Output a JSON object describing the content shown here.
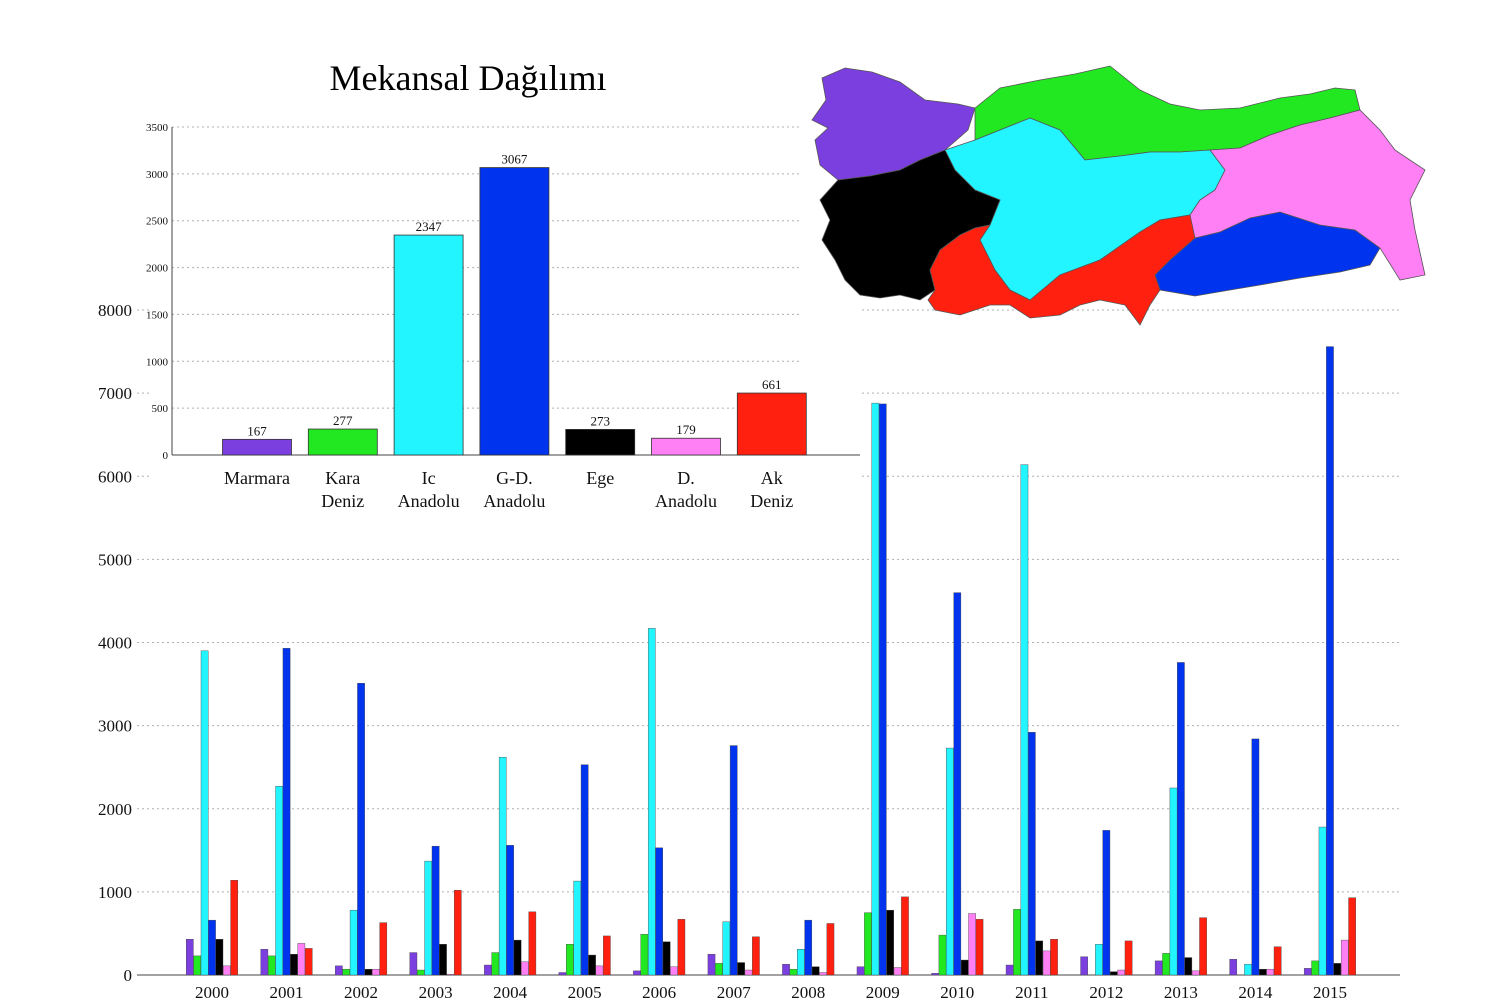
{
  "chart_data": [
    {
      "type": "bar",
      "title": "Mekansal Dağılımı",
      "categories": [
        [
          "Marmara"
        ],
        [
          "Kara",
          "Deniz"
        ],
        [
          "Ic",
          "Anadolu"
        ],
        [
          "G-D.",
          "Anadolu"
        ],
        [
          "Ege"
        ],
        [
          "D.",
          "Anadolu"
        ],
        [
          "Ak",
          "Deniz"
        ]
      ],
      "values": [
        167,
        277,
        2347,
        3067,
        273,
        179,
        661
      ],
      "data_labels": [
        "167",
        "277",
        "2347",
        "3067",
        "273",
        "179",
        "661"
      ],
      "colors": [
        "#7b3fe0",
        "#22e822",
        "#22f5ff",
        "#0033ee",
        "#000000",
        "#ff7ff5",
        "#ff2010"
      ],
      "ylim": [
        0,
        3500
      ],
      "yticks": [
        0,
        500,
        1000,
        1500,
        2000,
        2500,
        3000,
        3500
      ],
      "grid": true
    },
    {
      "type": "bar",
      "categories": [
        "2000",
        "2001",
        "2002",
        "2003",
        "2004",
        "2005",
        "2006",
        "2007",
        "2008",
        "2009",
        "2010",
        "2011",
        "2012",
        "2013",
        "2014",
        "2015"
      ],
      "series": [
        {
          "color": "#7b3fe0",
          "values": [
            430,
            310,
            110,
            270,
            120,
            30,
            50,
            250,
            130,
            100,
            20,
            120,
            220,
            170,
            190,
            80
          ]
        },
        {
          "color": "#22e822",
          "values": [
            230,
            230,
            70,
            60,
            270,
            370,
            490,
            140,
            70,
            750,
            480,
            790,
            0,
            260,
            0,
            170
          ]
        },
        {
          "color": "#22f5ff",
          "values": [
            3900,
            2270,
            780,
            1370,
            2620,
            1130,
            4170,
            640,
            310,
            6880,
            2730,
            6140,
            370,
            2250,
            130,
            1780
          ]
        },
        {
          "color": "#0033ee",
          "values": [
            660,
            3930,
            3510,
            1550,
            1560,
            2530,
            1530,
            2760,
            660,
            6870,
            4600,
            2920,
            1740,
            3760,
            2840,
            7560
          ]
        },
        {
          "color": "#000000",
          "values": [
            430,
            250,
            70,
            370,
            420,
            240,
            400,
            150,
            100,
            780,
            180,
            410,
            40,
            210,
            70,
            140
          ]
        },
        {
          "color": "#ff7ff5",
          "values": [
            110,
            380,
            70,
            10,
            160,
            110,
            100,
            60,
            30,
            90,
            740,
            290,
            60,
            50,
            70,
            420
          ]
        },
        {
          "color": "#ff2010",
          "values": [
            1140,
            320,
            630,
            1020,
            760,
            470,
            670,
            460,
            620,
            940,
            670,
            430,
            410,
            690,
            340,
            930
          ]
        }
      ],
      "ylim": [
        0,
        8000
      ],
      "yticks": [
        0,
        1000,
        2000,
        3000,
        4000,
        5000,
        6000,
        7000,
        8000
      ],
      "grid": true
    }
  ],
  "map": {
    "region_colors": [
      "#7b3fe0",
      "#22e822",
      "#22f5ff",
      "#0033ee",
      "#000000",
      "#ff7ff5",
      "#ff2010"
    ]
  }
}
